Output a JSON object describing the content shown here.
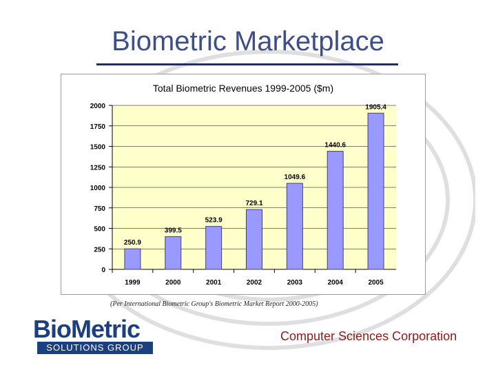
{
  "slide": {
    "title": "Biometric Marketplace",
    "source_note": "(Per International Biometric Group's Biometric Market Report 2000-2005)",
    "logo_left": {
      "word": "BioMetric",
      "tagline": "SOLUTIONS GROUP"
    },
    "logo_right": "Computer Sciences Corporation"
  },
  "chart_data": {
    "type": "bar",
    "title": "Total Biometric Revenues 1999-2005 ($m)",
    "categories": [
      "1999",
      "2000",
      "2001",
      "2002",
      "2003",
      "2004",
      "2005"
    ],
    "values": [
      250.9,
      399.5,
      523.9,
      729.1,
      1049.6,
      1440.6,
      1905.4
    ],
    "data_labels": [
      "250.9",
      "399.5",
      "523.9",
      "729.1",
      "1049.6",
      "1440.6",
      "1905.4"
    ],
    "yticks": [
      "0",
      "250",
      "500",
      "750",
      "1000",
      "1250",
      "1500",
      "1750",
      "2000"
    ],
    "ylim": [
      0,
      2000
    ],
    "grid": true,
    "legend": "none",
    "colors": {
      "bar": "#9999ff",
      "bar_stroke": "#404080",
      "plot_bg": "#ffffcc",
      "grid": "#000000"
    }
  }
}
